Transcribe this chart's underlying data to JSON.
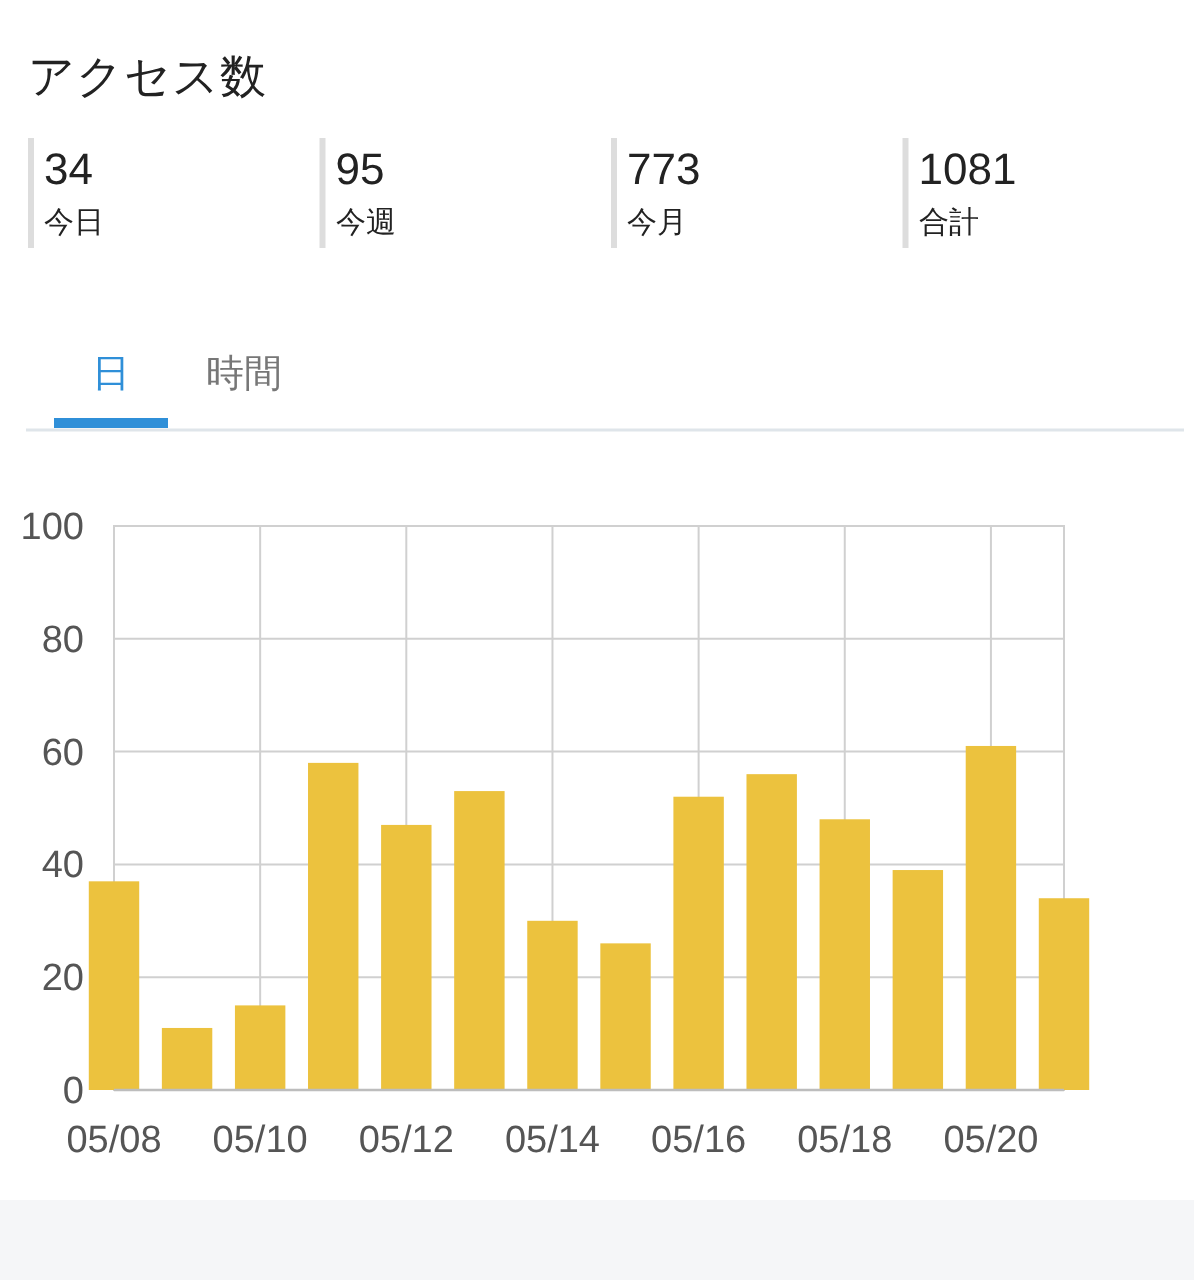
{
  "chart_data": [
    {
      "type": "other",
      "title": "アクセス数",
      "annotations": [
        "34",
        "今日",
        "95",
        "今週",
        "773",
        "今月",
        "1081",
        "合計"
      ]
    },
    {
      "type": "bar",
      "annotations": [
        "日",
        "時間"
      ],
      "x": [
        "--05-08",
        "--05-09",
        "--05-10",
        "--05-11",
        "--05-12",
        "--05-13",
        "--05-14",
        "--05-15",
        "--05-16",
        "--05-17",
        "--05-18",
        "--05-19",
        "--05-20",
        "--05-21"
      ],
      "values": [
        37,
        11,
        15,
        58,
        47,
        53,
        30,
        26,
        52,
        56,
        48,
        39,
        61,
        34
      ],
      "color": "#ecc23e",
      "xlim": [
        "--05-08",
        "--05-21"
      ],
      "xticks": [
        {
          "value": "--05-08",
          "label": "05/08"
        },
        {
          "value": "--05-10",
          "label": "05/10"
        },
        {
          "value": "--05-12",
          "label": "05/12"
        },
        {
          "value": "--05-14",
          "label": "05/14"
        },
        {
          "value": "--05-16",
          "label": "05/16"
        },
        {
          "value": "--05-18",
          "label": "05/18"
        },
        {
          "value": "--05-20",
          "label": "05/20"
        }
      ],
      "ylim": [
        0,
        100
      ],
      "yticks": [
        0,
        20,
        40,
        60,
        80,
        100
      ],
      "grid": true
    }
  ]
}
